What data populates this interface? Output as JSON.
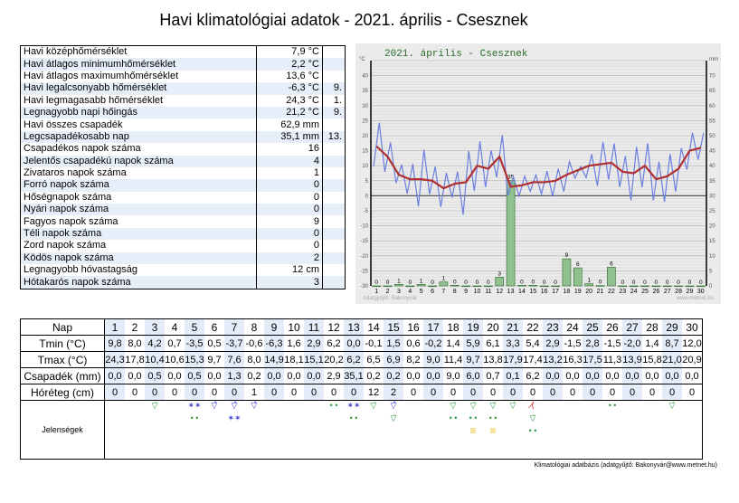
{
  "title": "Havi klimatológiai adatok - 2021. április - Csesznek",
  "stats": [
    [
      "Havi középhőmérséklet",
      "7,9 °C",
      ""
    ],
    [
      "Havi átlagos minimumhőmérséklet",
      "2,2 °C",
      ""
    ],
    [
      "Havi átlagos maximumhőmérséklet",
      "13,6 °C",
      ""
    ],
    [
      "Havi legalcsonyabb hőmérséklet",
      "-6,3 °C",
      "9."
    ],
    [
      "Havi legmagasabb hőmérséklet",
      "24,3 °C",
      "1."
    ],
    [
      "Legnagyobb napi hőingás",
      "21,2 °C",
      "9."
    ],
    [
      "Havi összes csapadék",
      "62,9 mm",
      ""
    ],
    [
      "Legcsapadékosabb nap",
      "35,1 mm",
      "13."
    ],
    [
      "Csapadékos napok száma",
      "16",
      ""
    ],
    [
      "Jelentős csapadékú napok száma",
      "4",
      ""
    ],
    [
      "Zivataros napok száma",
      "1",
      ""
    ],
    [
      "Forró napok száma",
      "0",
      ""
    ],
    [
      "Hőségnapok száma",
      "0",
      ""
    ],
    [
      "Nyári napok száma",
      "0",
      ""
    ],
    [
      "Fagyos napok száma",
      "9",
      ""
    ],
    [
      "Téli napok száma",
      "0",
      ""
    ],
    [
      "Zord napok száma",
      "0",
      ""
    ],
    [
      "Ködös napok száma",
      "2",
      ""
    ],
    [
      "Legnagyobb hóvastagság",
      "12 cm",
      ""
    ],
    [
      "Hótakarós napok száma",
      "3",
      ""
    ]
  ],
  "daily": {
    "labels": [
      "Nap",
      "Tmin (°C)",
      "Tmax (°C)",
      "Csapadék (mm)",
      "Hóréteg (cm)",
      "Jelenségek"
    ],
    "tmin": [
      "9,8",
      "8,0",
      "4,2",
      "0,7",
      "-3,5",
      "0,5",
      "-3,7",
      "-0,6",
      "-6,3",
      "1,6",
      "2,9",
      "6,2",
      "0,0",
      "-0,1",
      "1,5",
      "0,6",
      "-0,2",
      "1,4",
      "5,9",
      "6,1",
      "3,3",
      "5,4",
      "2,9",
      "-1,5",
      "2,8",
      "-1,5",
      "-2,0",
      "1,4",
      "8,7",
      "12,0"
    ],
    "tmax": [
      "24,3",
      "17,8",
      "10,4",
      "10,6",
      "15,3",
      "9,7",
      "7,6",
      "8,0",
      "14,9",
      "18,1",
      "15,1",
      "20,2",
      "6,2",
      "6,5",
      "6,9",
      "8,2",
      "9,0",
      "11,4",
      "9,7",
      "13,8",
      "17,9",
      "17,4",
      "13,2",
      "16,3",
      "17,5",
      "11,3",
      "13,9",
      "15,8",
      "21,0",
      "20,9"
    ],
    "precip": [
      "0,0",
      "0,0",
      "0,5",
      "0,0",
      "0,5",
      "0,0",
      "1,3",
      "0,2",
      "0,0",
      "0,0",
      "0,0",
      "2,9",
      "35,1",
      "0,2",
      "0,2",
      "0,0",
      "0,0",
      "9,0",
      "6,0",
      "0,7",
      "0,1",
      "6,2",
      "0,0",
      "0,0",
      "0,0",
      "0,0",
      "0,0",
      "0,0",
      "0,0",
      "0,0"
    ],
    "snow": [
      "0",
      "0",
      "0",
      "0",
      "0",
      "0",
      "0",
      "1",
      "0",
      "0",
      "0",
      "0",
      "0",
      "12",
      "2",
      "0",
      "0",
      "0",
      "0",
      "0",
      "0",
      "0",
      "0",
      "0",
      "0",
      "0",
      "0",
      "0",
      "0",
      "0"
    ],
    "phenomena": {
      "3": [
        "rain-shower"
      ],
      "5": [
        "snow",
        "rain"
      ],
      "6": [
        "snow-shower"
      ],
      "7": [
        "snow-shower",
        "snow"
      ],
      "8": [
        "snow-shower"
      ],
      "12": [
        "rain"
      ],
      "13": [
        "snow",
        "rain"
      ],
      "14": [
        "rain-shower"
      ],
      "15": [
        "snow-shower",
        "rain-shower"
      ],
      "18": [
        "rain-shower",
        "rain"
      ],
      "19": [
        "rain-shower",
        "rain",
        "fog"
      ],
      "20": [
        "rain-shower",
        "rain",
        "fog"
      ],
      "21": [
        "rain-shower"
      ],
      "22": [
        "thunderstorm",
        "rain-shower",
        "rain"
      ],
      "26": [
        "rain"
      ],
      "29": [
        "rain-shower"
      ]
    }
  },
  "footer": "Klimatológiai adatbázis (adatgyűjtő: Bakonyvár@www.metnet.hu)",
  "chart_data": {
    "type": "line+bar",
    "title": "2021. április - Csesznek",
    "ylabel_left": "°C",
    "ylabel_right": "mm",
    "ylim_left": [
      -30,
      45
    ],
    "ylim_right": [
      0,
      75
    ],
    "yticks_left": [
      40,
      35,
      30,
      25,
      20,
      15,
      10,
      5,
      0,
      -5,
      -10,
      -15,
      -20,
      -25,
      -30
    ],
    "yticks_right": [
      70,
      65,
      60,
      55,
      50,
      45,
      40,
      35,
      30,
      25,
      20,
      15,
      10,
      5,
      0
    ],
    "x": [
      1,
      2,
      3,
      4,
      5,
      6,
      7,
      8,
      9,
      10,
      11,
      12,
      13,
      14,
      15,
      16,
      17,
      18,
      19,
      20,
      21,
      22,
      23,
      24,
      25,
      26,
      27,
      28,
      29,
      30
    ],
    "tmin": [
      9.8,
      8.0,
      4.2,
      0.7,
      -3.5,
      0.5,
      -3.7,
      -0.6,
      -6.3,
      1.6,
      2.9,
      6.2,
      0.0,
      -0.1,
      1.5,
      0.6,
      -0.2,
      1.4,
      5.9,
      6.1,
      3.3,
      5.4,
      2.9,
      -1.5,
      2.8,
      -1.5,
      -2.0,
      1.4,
      8.7,
      12.0
    ],
    "tmax": [
      24.3,
      17.8,
      10.4,
      10.6,
      15.3,
      9.7,
      7.6,
      8.0,
      14.9,
      18.1,
      15.1,
      20.2,
      6.2,
      6.5,
      6.9,
      8.2,
      9.0,
      11.4,
      9.7,
      13.8,
      17.9,
      17.4,
      13.2,
      16.3,
      17.5,
      11.3,
      13.9,
      15.8,
      21.0,
      20.9
    ],
    "tmean": [
      16.5,
      13,
      7,
      5.5,
      5.5,
      5,
      2.5,
      4,
      4.5,
      10,
      9,
      13,
      3,
      3.5,
      4.5,
      4.5,
      5,
      7,
      8.5,
      10,
      10.5,
      11,
      8,
      7.5,
      10,
      5.5,
      6.5,
      9,
      15,
      16
    ],
    "precip": [
      0.0,
      0.0,
      0.5,
      0.0,
      0.5,
      0.0,
      1.3,
      0.2,
      0.0,
      0.0,
      0.0,
      2.9,
      35.1,
      0.2,
      0.2,
      0.0,
      0.0,
      9.0,
      6.0,
      0.7,
      0.1,
      6.2,
      0.0,
      0.0,
      0.0,
      0.0,
      0.0,
      0.0,
      0.0,
      0.0
    ],
    "precip_labels": [
      "0",
      "0",
      "1",
      "0",
      "1",
      "0",
      "1",
      "0",
      "0",
      "0",
      "0",
      "3",
      "35",
      "0",
      "0",
      "0",
      "0",
      "9",
      "6",
      "1",
      "0",
      "6",
      "0",
      "0",
      "0",
      "0",
      "0",
      "0",
      "0",
      "0"
    ],
    "colors": {
      "tminmax": "#6a7fe0",
      "tmean": "#b03030",
      "precip": "#90c090",
      "background": "#ebebeb"
    },
    "grid": true,
    "watermark_left": "Adatgyűjtő: Bakonyvár",
    "watermark_right": "www.metnet.hu"
  }
}
